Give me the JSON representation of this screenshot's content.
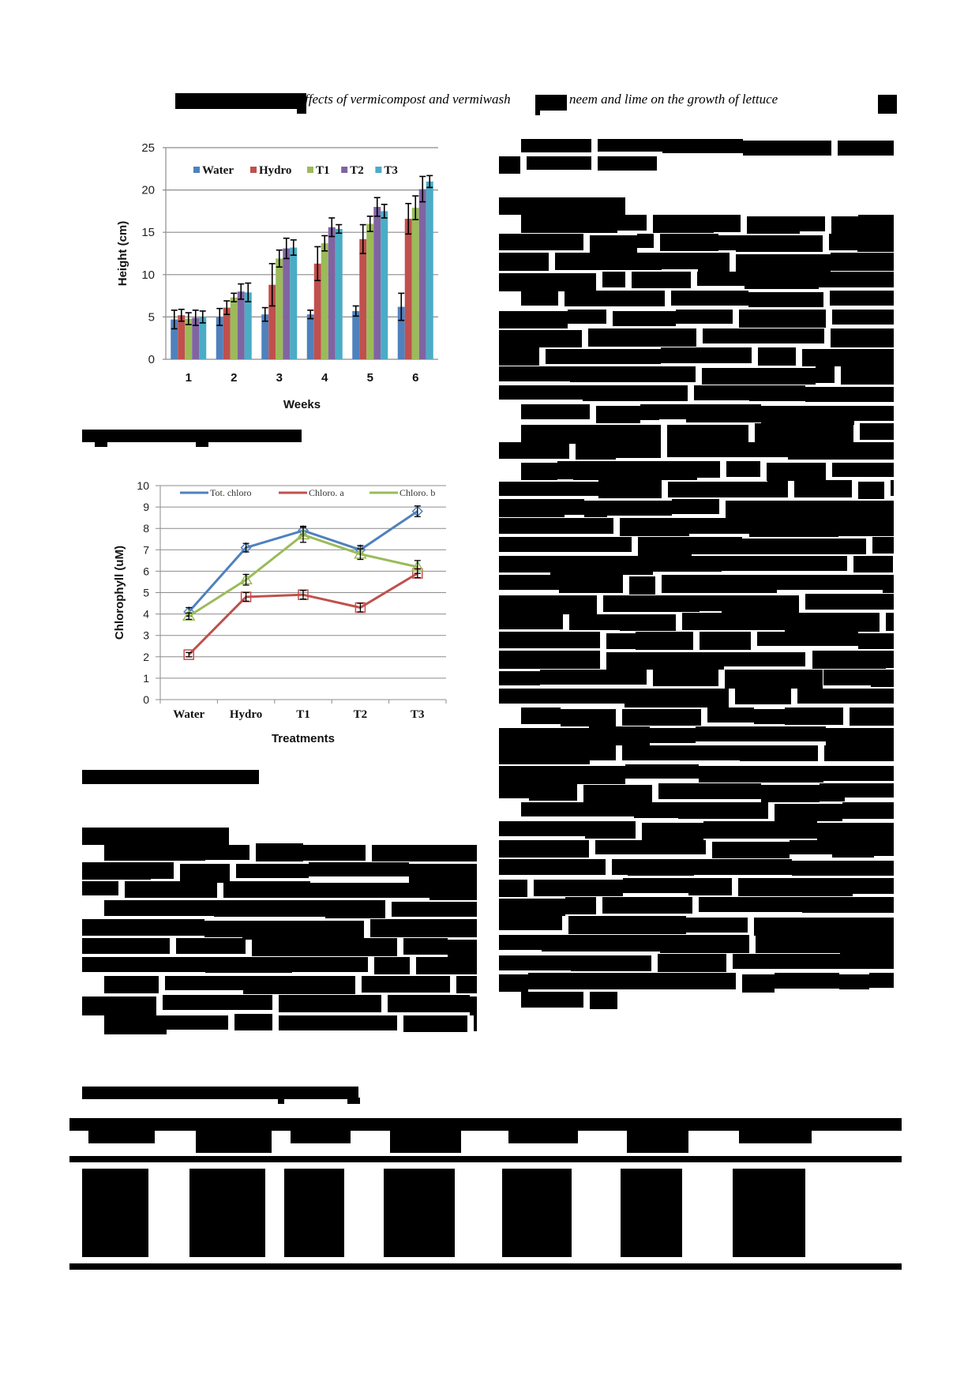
{
  "page": {
    "running_head": "ffects of vermicompost and vermiwash",
    "running_head_tail": "neem and lime on the growth of lettuce",
    "redacted_note": "Most body text, captions, headings and table contents are redacted (black boxes)."
  },
  "figures": {
    "figure1": {
      "caption": "[redacted]",
      "ylabel": "Height (cm)",
      "xlabel": "Weeks"
    },
    "figure2": {
      "caption": "[redacted]",
      "ylabel": "Chlorophyll (uM)",
      "xlabel": "Treatments"
    }
  },
  "sections": {
    "left_heading": "[redacted]",
    "left_subheading": "[redacted]",
    "right_heading": "[redacted]",
    "table_caption": "[redacted]"
  },
  "table": {
    "columns": 7,
    "header": [
      "[redacted]",
      "[redacted]",
      "[redacted]",
      "[redacted]",
      "[redacted]",
      "[redacted]",
      "[redacted]"
    ],
    "rows": [
      [
        "[redacted]",
        "[redacted]",
        "[redacted]",
        "[redacted]",
        "[redacted]",
        "[redacted]",
        "[redacted]"
      ]
    ]
  },
  "chart_data": [
    {
      "type": "bar",
      "title": "",
      "xlabel": "Weeks",
      "ylabel": "Height (cm)",
      "ylim": [
        0,
        25
      ],
      "yticks": [
        0,
        5,
        10,
        15,
        20,
        25
      ],
      "grid": true,
      "legend_position": "top-inside",
      "categories": [
        "1",
        "2",
        "3",
        "4",
        "5",
        "6"
      ],
      "series": [
        {
          "name": "Water",
          "color": "#4F81BD",
          "values": [
            4.7,
            5.0,
            5.3,
            5.3,
            5.7,
            6.2
          ],
          "errors": [
            1.1,
            1.0,
            0.8,
            0.5,
            0.6,
            1.6
          ]
        },
        {
          "name": "Hydro",
          "color": "#C0504D",
          "values": [
            5.2,
            6.1,
            8.8,
            11.3,
            14.2,
            16.6
          ],
          "errors": [
            0.7,
            0.8,
            2.5,
            2.0,
            1.7,
            1.8
          ]
        },
        {
          "name": "T1",
          "color": "#9BBB59",
          "values": [
            4.8,
            7.3,
            11.9,
            13.7,
            16.0,
            17.9
          ],
          "errors": [
            0.7,
            0.5,
            1.0,
            0.9,
            0.9,
            1.4
          ]
        },
        {
          "name": "T2",
          "color": "#8064A2",
          "values": [
            4.9,
            8.0,
            13.1,
            15.6,
            18.0,
            20.1
          ],
          "errors": [
            0.9,
            0.9,
            1.2,
            1.1,
            1.1,
            1.5
          ]
        },
        {
          "name": "T3",
          "color": "#4BACC6",
          "values": [
            5.0,
            7.9,
            13.2,
            15.4,
            17.5,
            21.0
          ],
          "errors": [
            0.7,
            1.1,
            0.9,
            0.5,
            0.8,
            0.7
          ]
        }
      ]
    },
    {
      "type": "line",
      "title": "",
      "xlabel": "Treatments",
      "ylabel": "Chlorophyll (uM)",
      "ylim": [
        0,
        10
      ],
      "yticks": [
        0,
        1,
        2,
        3,
        4,
        5,
        6,
        7,
        8,
        9,
        10
      ],
      "grid": true,
      "legend_position": "top-inside",
      "categories": [
        "Water",
        "Hydro",
        "T1",
        "T2",
        "T3"
      ],
      "series": [
        {
          "name": "Tot. chloro",
          "color": "#4F81BD",
          "marker": "diamond",
          "values": [
            4.1,
            7.1,
            7.9,
            7.0,
            8.8
          ],
          "errors": [
            0.2,
            0.2,
            0.2,
            0.2,
            0.25
          ]
        },
        {
          "name": "Chloro. a",
          "color": "#C0504D",
          "marker": "square",
          "values": [
            2.1,
            4.8,
            4.9,
            4.3,
            5.9
          ],
          "errors": [
            0.1,
            0.2,
            0.2,
            0.2,
            0.2
          ]
        },
        {
          "name": "Chloro. b",
          "color": "#9BBB59",
          "marker": "triangle",
          "values": [
            3.9,
            5.6,
            7.7,
            6.8,
            6.2
          ],
          "errors": [
            0.15,
            0.25,
            0.35,
            0.25,
            0.3
          ]
        }
      ]
    }
  ]
}
